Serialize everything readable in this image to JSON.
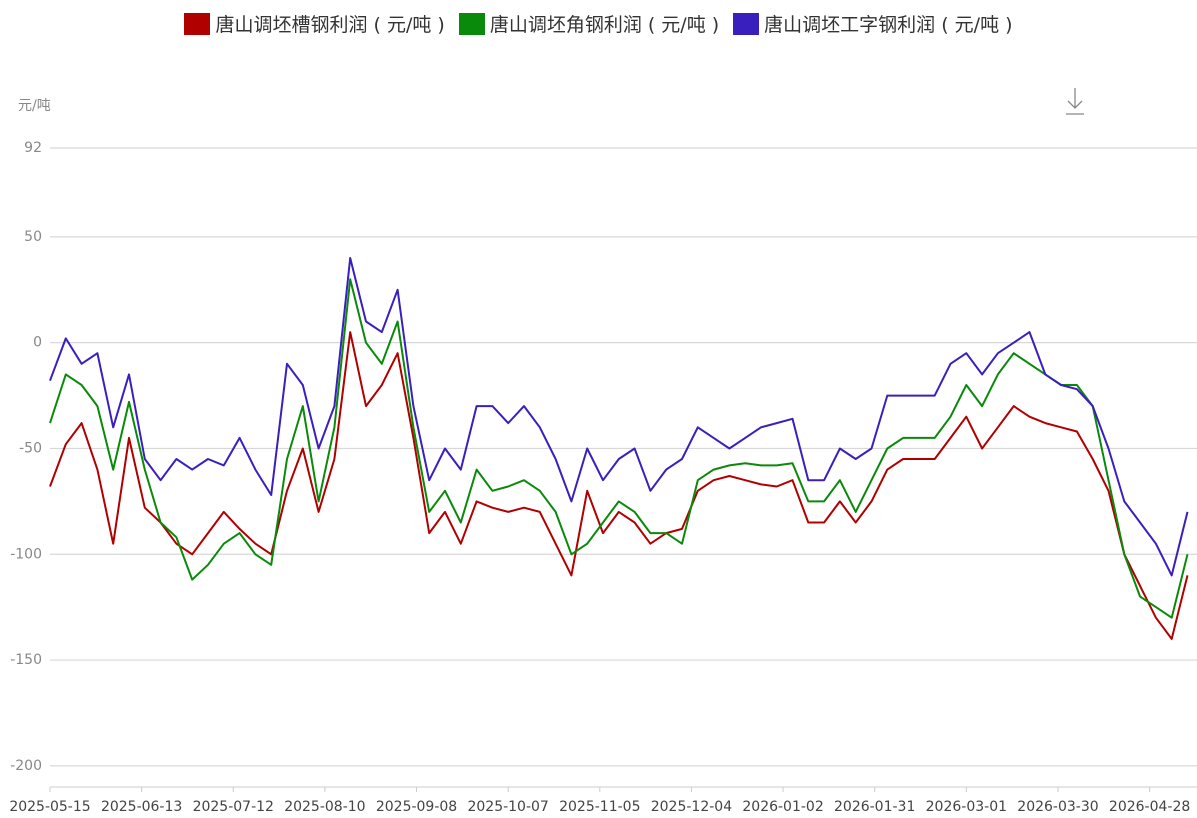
{
  "chart_data": {
    "type": "line",
    "y_unit": "元/吨",
    "x": [
      "2025-05-15",
      "2025-05-20",
      "2025-05-25",
      "2025-05-30",
      "2025-06-04",
      "2025-06-09",
      "2025-06-14",
      "2025-06-19",
      "2025-06-24",
      "2025-06-29",
      "2025-07-04",
      "2025-07-09",
      "2025-07-14",
      "2025-07-19",
      "2025-07-24",
      "2025-07-29",
      "2025-08-03",
      "2025-08-08",
      "2025-08-13",
      "2025-08-18",
      "2025-08-23",
      "2025-08-28",
      "2025-09-02",
      "2025-09-07",
      "2025-09-12",
      "2025-09-17",
      "2025-09-22",
      "2025-09-27",
      "2025-10-02",
      "2025-10-07",
      "2025-10-12",
      "2025-10-17",
      "2025-10-22",
      "2025-10-27",
      "2025-11-01",
      "2025-11-06",
      "2025-11-11",
      "2025-11-16",
      "2025-11-21",
      "2025-11-26",
      "2025-12-01",
      "2025-12-06",
      "2025-12-11",
      "2025-12-16",
      "2025-12-21",
      "2025-12-26",
      "2025-12-31",
      "2026-01-05",
      "2026-01-10",
      "2026-01-15",
      "2026-01-20",
      "2026-01-25",
      "2026-01-30",
      "2026-02-04",
      "2026-02-09",
      "2026-02-14",
      "2026-02-19",
      "2026-02-24",
      "2026-03-01",
      "2026-03-06",
      "2026-03-11",
      "2026-03-16",
      "2026-03-21",
      "2026-03-26",
      "2026-03-31",
      "2026-04-05",
      "2026-04-10",
      "2026-04-15",
      "2026-04-20",
      "2026-04-25",
      "2026-04-30",
      "2026-05-05",
      "2026-05-10"
    ],
    "series": [
      {
        "name": "唐山调坯槽钢利润 ( 元/吨 )",
        "color": "#b00000",
        "values": [
          -68,
          -48,
          -38,
          -60,
          -95,
          -45,
          -78,
          -85,
          -95,
          -100,
          -90,
          -80,
          -88,
          -95,
          -100,
          -70,
          -50,
          -80,
          -55,
          5,
          -30,
          -20,
          -5,
          -45,
          -90,
          -80,
          -95,
          -75,
          -78,
          -80,
          -78,
          -80,
          -95,
          -110,
          -70,
          -90,
          -80,
          -85,
          -95,
          -90,
          -88,
          -70,
          -65,
          -63,
          -65,
          -67,
          -68,
          -65,
          -85,
          -85,
          -75,
          -85,
          -75,
          -60,
          -55,
          -55,
          -55,
          -45,
          -35,
          -50,
          -40,
          -30,
          -35,
          -38,
          -40,
          -42,
          -55,
          -70,
          -100,
          -115,
          -130,
          -140,
          -110
        ]
      },
      {
        "name": "唐山调坯角钢利润 ( 元/吨 )",
        "color": "#0a8a0a",
        "values": [
          -38,
          -15,
          -20,
          -30,
          -60,
          -28,
          -60,
          -85,
          -92,
          -112,
          -105,
          -95,
          -90,
          -100,
          -105,
          -55,
          -30,
          -75,
          -40,
          30,
          0,
          -10,
          10,
          -40,
          -80,
          -70,
          -85,
          -60,
          -70,
          -68,
          -65,
          -70,
          -80,
          -100,
          -95,
          -85,
          -75,
          -80,
          -90,
          -90,
          -95,
          -65,
          -60,
          -58,
          -57,
          -58,
          -58,
          -57,
          -75,
          -75,
          -65,
          -80,
          -65,
          -50,
          -45,
          -45,
          -45,
          -35,
          -20,
          -30,
          -15,
          -5,
          -10,
          -15,
          -20,
          -20,
          -30,
          -65,
          -100,
          -120,
          -125,
          -130,
          -100
        ]
      },
      {
        "name": "唐山调坯工字钢利润 ( 元/吨 )",
        "color": "#3a1fbf",
        "values": [
          -18,
          2,
          -10,
          -5,
          -40,
          -15,
          -55,
          -65,
          -55,
          -60,
          -55,
          -58,
          -45,
          -60,
          -72,
          -10,
          -20,
          -50,
          -30,
          40,
          10,
          5,
          25,
          -30,
          -65,
          -50,
          -60,
          -30,
          -30,
          -38,
          -30,
          -40,
          -55,
          -75,
          -50,
          -65,
          -55,
          -50,
          -70,
          -60,
          -55,
          -40,
          -45,
          -50,
          -45,
          -40,
          -38,
          -36,
          -65,
          -65,
          -50,
          -55,
          -50,
          -25,
          -25,
          -25,
          -25,
          -10,
          -5,
          -15,
          -5,
          0,
          5,
          -15,
          -20,
          -22,
          -30,
          -50,
          -75,
          -85,
          -95,
          -110,
          -80
        ]
      }
    ],
    "xlim": [
      "2025-05-15",
      "2026-05-13"
    ],
    "xticks": [
      "2025-05-15",
      "2025-06-13",
      "2025-07-12",
      "2025-08-10",
      "2025-09-08",
      "2025-10-07",
      "2025-11-05",
      "2025-12-04",
      "2026-01-02",
      "2026-01-31",
      "2026-03-01",
      "2026-03-30",
      "2026-04-28"
    ],
    "ylim": [
      -210,
      92
    ],
    "yticks": [
      92,
      50,
      0,
      -50,
      -100,
      -150,
      -200
    ],
    "grid": true
  }
}
